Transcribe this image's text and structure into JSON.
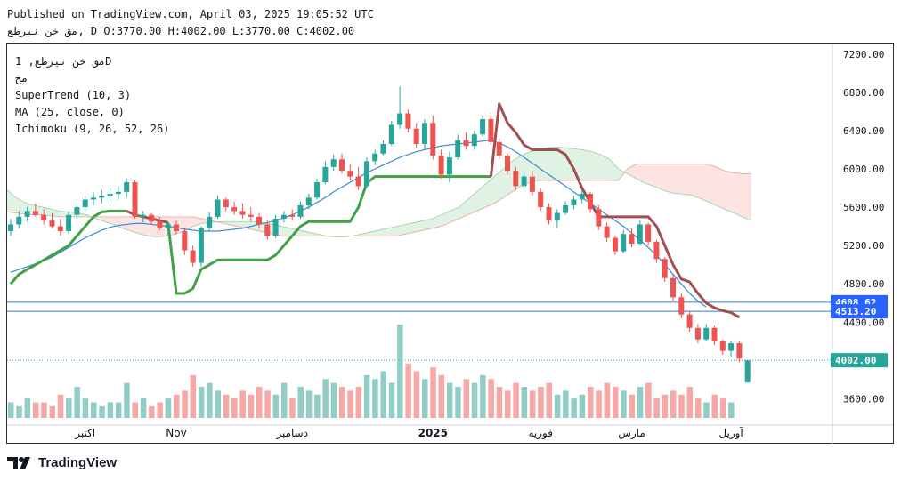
{
  "header": {
    "published": "Published on TradingView.com, April 03, 2025 19:05:52 UTC",
    "ohlc": "مق خن نيرطع, D O:3770.00 H:4002.00 L:3770.00 C:4002.00"
  },
  "legend": {
    "symbol": "مق خن نيرطع, 1D",
    "symbol2": "مح",
    "supertrend": "SuperTrend (10, 3)",
    "ma": "MA (25, close, 0)",
    "ichimoku": "Ichimoku (9, 26, 52, 26)"
  },
  "footer": {
    "brand": "TradingView"
  },
  "colors": {
    "up": "#26a69a",
    "down": "#ef5350",
    "up_vol": "#91cdc6",
    "down_vol": "#f5a8a6",
    "supertrend_up": "#43a047",
    "supertrend_down": "#a05050",
    "ma": "#3a8bd8",
    "cloud_green": "#e0f2e4",
    "cloud_red": "#fde3e1",
    "hline": "#2d7fd0",
    "last_price": "#2962ff"
  },
  "chart_data": {
    "type": "candlestick",
    "y_axis": {
      "min": 3400,
      "max": 7300,
      "ticks": [
        3600,
        4000,
        4400,
        4800,
        5200,
        5600,
        6000,
        6400,
        6800,
        7200
      ],
      "tick_labels": [
        "3600.00",
        "",
        "4400.00",
        "4800.00",
        "5200.00",
        "5600.00",
        "6000.00",
        "6400.00",
        "6800.00",
        "7200.00"
      ]
    },
    "x_axis": {
      "labels": [
        "اكتبر",
        "Nov",
        "دسامبر",
        "2025",
        "فوريه",
        "مارس",
        "آوريل"
      ],
      "label_bar_index": [
        9,
        20,
        34,
        51,
        64,
        75,
        87
      ],
      "bold_index": 3
    },
    "price_labels": [
      {
        "value": 4608.62,
        "text": "4608.62"
      },
      {
        "value": 4513.2,
        "text": "4513.20"
      },
      {
        "value": 4002.0,
        "text": "4002.00"
      }
    ],
    "horizontal_lines": [
      4608.62,
      4513.2
    ],
    "last_price": 4002.0,
    "ohlc": [
      [
        5350,
        5480,
        5300,
        5420
      ],
      [
        5420,
        5560,
        5380,
        5500
      ],
      [
        5500,
        5600,
        5450,
        5560
      ],
      [
        5560,
        5640,
        5500,
        5520
      ],
      [
        5520,
        5580,
        5420,
        5460
      ],
      [
        5460,
        5540,
        5380,
        5400
      ],
      [
        5400,
        5480,
        5300,
        5350
      ],
      [
        5350,
        5560,
        5320,
        5520
      ],
      [
        5520,
        5650,
        5480,
        5600
      ],
      [
        5600,
        5720,
        5540,
        5680
      ],
      [
        5680,
        5760,
        5620,
        5700
      ],
      [
        5700,
        5780,
        5640,
        5720
      ],
      [
        5720,
        5800,
        5660,
        5740
      ],
      [
        5740,
        5820,
        5680,
        5760
      ],
      [
        5760,
        5900,
        5700,
        5860
      ],
      [
        5860,
        5880,
        5480,
        5500
      ],
      [
        5500,
        5560,
        5440,
        5520
      ],
      [
        5520,
        5540,
        5420,
        5450
      ],
      [
        5450,
        5500,
        5360,
        5380
      ],
      [
        5380,
        5440,
        5300,
        5420
      ],
      [
        5420,
        5460,
        5320,
        5350
      ],
      [
        5350,
        5380,
        5100,
        5150
      ],
      [
        5150,
        5200,
        4980,
        5020
      ],
      [
        5020,
        5400,
        4980,
        5380
      ],
      [
        5380,
        5550,
        5350,
        5500
      ],
      [
        5500,
        5720,
        5480,
        5680
      ],
      [
        5680,
        5700,
        5560,
        5600
      ],
      [
        5600,
        5660,
        5520,
        5560
      ],
      [
        5560,
        5640,
        5480,
        5520
      ],
      [
        5520,
        5600,
        5450,
        5500
      ],
      [
        5500,
        5540,
        5380,
        5420
      ],
      [
        5420,
        5460,
        5260,
        5300
      ],
      [
        5300,
        5520,
        5280,
        5480
      ],
      [
        5480,
        5560,
        5440,
        5520
      ],
      [
        5520,
        5580,
        5460,
        5500
      ],
      [
        5500,
        5660,
        5480,
        5620
      ],
      [
        5620,
        5740,
        5580,
        5700
      ],
      [
        5700,
        5900,
        5680,
        5860
      ],
      [
        5860,
        6080,
        5840,
        6020
      ],
      [
        6020,
        6150,
        5980,
        6100
      ],
      [
        6100,
        6160,
        5950,
        5980
      ],
      [
        5980,
        6050,
        5880,
        5920
      ],
      [
        5920,
        6020,
        5780,
        5820
      ],
      [
        5820,
        6120,
        5800,
        6080
      ],
      [
        6080,
        6200,
        6040,
        6160
      ],
      [
        6160,
        6300,
        6140,
        6260
      ],
      [
        6260,
        6500,
        6240,
        6460
      ],
      [
        6460,
        6860,
        6420,
        6580
      ],
      [
        6580,
        6620,
        6380,
        6420
      ],
      [
        6420,
        6480,
        6220,
        6260
      ],
      [
        6260,
        6520,
        6200,
        6480
      ],
      [
        6480,
        6560,
        6100,
        6140
      ],
      [
        6140,
        6200,
        5900,
        5940
      ],
      [
        5940,
        6180,
        5860,
        6120
      ],
      [
        6120,
        6360,
        6100,
        6300
      ],
      [
        6300,
        6380,
        6200,
        6240
      ],
      [
        6240,
        6400,
        6200,
        6360
      ],
      [
        6360,
        6560,
        6340,
        6520
      ],
      [
        6520,
        6580,
        6250,
        6280
      ],
      [
        6280,
        6320,
        6100,
        6140
      ],
      [
        6140,
        6160,
        5940,
        5980
      ],
      [
        5980,
        6020,
        5780,
        5820
      ],
      [
        5820,
        5960,
        5760,
        5920
      ],
      [
        5920,
        5980,
        5720,
        5760
      ],
      [
        5760,
        5800,
        5560,
        5600
      ],
      [
        5600,
        5640,
        5420,
        5460
      ],
      [
        5460,
        5580,
        5380,
        5540
      ],
      [
        5540,
        5660,
        5520,
        5620
      ],
      [
        5620,
        5720,
        5580,
        5680
      ],
      [
        5680,
        5780,
        5640,
        5740
      ],
      [
        5740,
        5760,
        5540,
        5580
      ],
      [
        5580,
        5620,
        5360,
        5400
      ],
      [
        5400,
        5440,
        5240,
        5280
      ],
      [
        5280,
        5300,
        5100,
        5140
      ],
      [
        5140,
        5360,
        5120,
        5320
      ],
      [
        5320,
        5380,
        5180,
        5220
      ],
      [
        5220,
        5460,
        5200,
        5420
      ],
      [
        5420,
        5440,
        5200,
        5240
      ],
      [
        5240,
        5260,
        5020,
        5060
      ],
      [
        5060,
        5080,
        4820,
        4860
      ],
      [
        4860,
        4900,
        4620,
        4660
      ],
      [
        4660,
        4700,
        4440,
        4480
      ],
      [
        4480,
        4520,
        4300,
        4340
      ],
      [
        4340,
        4380,
        4180,
        4220
      ],
      [
        4220,
        4380,
        4200,
        4340
      ],
      [
        4340,
        4360,
        4160,
        4200
      ],
      [
        4200,
        4220,
        4060,
        4100
      ],
      [
        4100,
        4200,
        4040,
        4180
      ],
      [
        4180,
        4200,
        3980,
        4020
      ],
      [
        3770,
        4002,
        3770,
        4002
      ]
    ],
    "volume": [
      4,
      3,
      5,
      4,
      4,
      3,
      6,
      5,
      8,
      5,
      4,
      3,
      4,
      4,
      9,
      4,
      5,
      3,
      4,
      5,
      6,
      7,
      11,
      8,
      9,
      7,
      6,
      5,
      7,
      6,
      8,
      7,
      6,
      9,
      5,
      8,
      7,
      6,
      10,
      9,
      8,
      7,
      8,
      11,
      10,
      12,
      9,
      24,
      14,
      12,
      10,
      13,
      11,
      9,
      8,
      10,
      9,
      11,
      10,
      8,
      7,
      9,
      8,
      7,
      8,
      9,
      6,
      7,
      5,
      6,
      8,
      7,
      9,
      8,
      7,
      6,
      8,
      9,
      5,
      6,
      7,
      6,
      8,
      5,
      4,
      6,
      5,
      4
    ],
    "supertrend": [
      4800,
      4900,
      4950,
      5000,
      5050,
      5100,
      5150,
      5200,
      5300,
      5400,
      5500,
      5550,
      5560,
      5560,
      5560,
      5520,
      5500,
      5480,
      5460,
      5440,
      4700,
      4700,
      4750,
      4950,
      5000,
      5050,
      5050,
      5050,
      5050,
      5050,
      5050,
      5050,
      5100,
      5200,
      5300,
      5400,
      5450,
      5450,
      5450,
      5450,
      5450,
      5450,
      5600,
      5850,
      5920,
      5920,
      5920,
      5920,
      5920,
      5920,
      5920,
      5920,
      5920,
      5920,
      5920,
      5920,
      5920,
      5920,
      5920,
      6680,
      6480,
      6380,
      6250,
      6200,
      6200,
      6200,
      6200,
      6150,
      6000,
      5800,
      5650,
      5500,
      5500,
      5500,
      5500,
      5500,
      5500,
      5500,
      5400,
      5200,
      5000,
      4850,
      4820,
      4700,
      4600,
      4550,
      4520,
      4500,
      4450
    ],
    "ma": [
      4920,
      4950,
      4980,
      5010,
      5040,
      5080,
      5130,
      5180,
      5230,
      5280,
      5320,
      5360,
      5390,
      5410,
      5420,
      5430,
      5430,
      5420,
      5410,
      5400,
      5390,
      5370,
      5360,
      5350,
      5350,
      5350,
      5360,
      5370,
      5380,
      5400,
      5420,
      5440,
      5460,
      5490,
      5520,
      5560,
      5600,
      5650,
      5700,
      5760,
      5810,
      5860,
      5910,
      5960,
      6000,
      6040,
      6080,
      6120,
      6150,
      6180,
      6200,
      6220,
      6240,
      6250,
      6260,
      6270,
      6280,
      6290,
      6300,
      6270,
      6230,
      6180,
      6120,
      6060,
      6000,
      5940,
      5880,
      5820,
      5760,
      5700,
      5640,
      5580,
      5520,
      5460,
      5400,
      5330,
      5260,
      5180,
      5100,
      5000,
      4900,
      4800,
      4700,
      4620,
      4560
    ],
    "ichimoku_span_a": [
      5780,
      5700,
      5650,
      5620,
      5600,
      5580,
      5560,
      5550,
      5540,
      5520,
      5480,
      5450,
      5420,
      5380,
      5350,
      5320,
      5300,
      5290,
      5300,
      5320,
      5350,
      5400,
      5430,
      5440,
      5450,
      5450,
      5450,
      5450,
      5450,
      5440,
      5420,
      5400,
      5380,
      5360,
      5340,
      5320,
      5300,
      5290,
      5290,
      5300,
      5320,
      5340,
      5360,
      5380,
      5400,
      5420,
      5440,
      5460,
      5480,
      5520,
      5560,
      5600,
      5680,
      5760,
      5840,
      5920,
      6000,
      6080,
      6140,
      6180,
      6200,
      6220,
      6230,
      6220,
      6210,
      6200,
      6180,
      6150,
      6100,
      6000,
      5950,
      5900,
      5850,
      5820,
      5780,
      5750,
      5740,
      5730,
      5700,
      5660,
      5620,
      5580,
      5540,
      5500,
      5460
    ],
    "ichimoku_span_b": [
      5550,
      5540,
      5530,
      5520,
      5520,
      5510,
      5500,
      5500,
      5500,
      5500,
      5500,
      5500,
      5500,
      5500,
      5500,
      5500,
      5500,
      5500,
      5500,
      5500,
      5500,
      5500,
      5480,
      5460,
      5440,
      5420,
      5400,
      5380,
      5360,
      5340,
      5320,
      5300,
      5300,
      5300,
      5300,
      5300,
      5300,
      5300,
      5300,
      5300,
      5300,
      5300,
      5300,
      5300,
      5300,
      5320,
      5340,
      5360,
      5380,
      5400,
      5440,
      5480,
      5520,
      5560,
      5600,
      5640,
      5700,
      5760,
      5820,
      5860,
      5880,
      5880,
      5880,
      5880,
      5880,
      5880,
      5880,
      5880,
      5880,
      5880,
      6000,
      6050,
      6050,
      6050,
      6050,
      6050,
      6050,
      6050,
      6050,
      6050,
      6020,
      5980,
      5960,
      5950,
      5950
    ]
  }
}
